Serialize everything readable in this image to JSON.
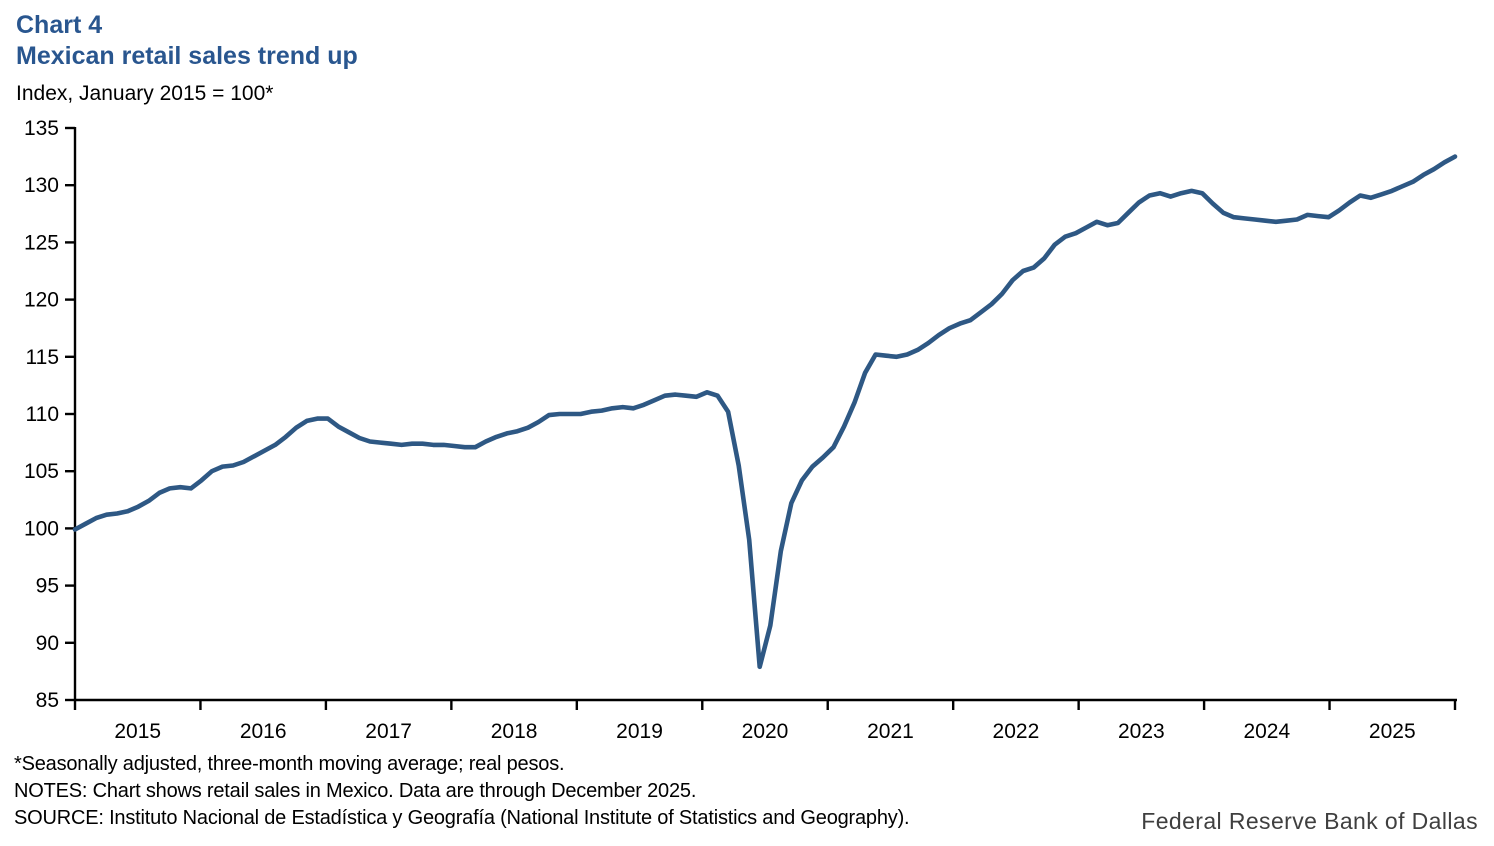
{
  "header": {
    "chart_label": "Chart 4",
    "title": "Mexican retail sales trend up",
    "units_note": "Index, January 2015 = 100*"
  },
  "footer": {
    "footnote": "*Seasonally adjusted, three-month moving average; real pesos.",
    "notes": "NOTES: Chart shows retail sales in Mexico. Data are through December 2025.",
    "source": "SOURCE: Instituto Nacional de Estadística y Geografía (National Institute of Statistics and Geography).",
    "branding": "Federal Reserve Bank of Dallas"
  },
  "colors": {
    "accent_blue": "#29568F",
    "line_blue": "#2E5884",
    "axis_black": "#000000",
    "wordmark_gray": "#3F3F3F"
  },
  "chart_data": {
    "type": "line",
    "title": "Mexican retail sales trend up",
    "ylabel": "Index, January 2015 = 100*",
    "ylim": [
      85,
      135
    ],
    "ytick_step": 5,
    "grid": false,
    "legend": "none",
    "frequency": "monthly",
    "x_range": [
      "2015-01",
      "2025-12"
    ],
    "xtick_labels": [
      "2015",
      "2016",
      "2017",
      "2018",
      "2019",
      "2020",
      "2021",
      "2022",
      "2023",
      "2024",
      "2025"
    ],
    "series": [
      {
        "name": "Mexico retail sales index (Jan 2015 = 100)",
        "color": "#2E5884",
        "values": [
          99.9,
          100.4,
          100.9,
          101.2,
          101.3,
          101.5,
          101.9,
          102.4,
          103.1,
          103.5,
          103.6,
          103.5,
          104.2,
          105.0,
          105.4,
          105.5,
          105.8,
          106.3,
          106.8,
          107.3,
          108.0,
          108.8,
          109.4,
          109.6,
          109.6,
          108.9,
          108.4,
          107.9,
          107.6,
          107.5,
          107.4,
          107.3,
          107.4,
          107.4,
          107.3,
          107.3,
          107.2,
          107.1,
          107.1,
          107.6,
          108.0,
          108.3,
          108.5,
          108.8,
          109.3,
          109.9,
          110.0,
          110.0,
          110.0,
          110.2,
          110.3,
          110.5,
          110.6,
          110.5,
          110.8,
          111.2,
          111.6,
          111.7,
          111.6,
          111.5,
          111.9,
          111.6,
          110.2,
          105.5,
          99.0,
          87.9,
          91.5,
          98.0,
          102.2,
          104.2,
          105.4,
          106.2,
          107.1,
          108.9,
          111.0,
          113.6,
          115.2,
          115.1,
          115.0,
          115.2,
          115.6,
          116.2,
          116.9,
          117.5,
          117.9,
          118.2,
          118.9,
          119.6,
          120.5,
          121.7,
          122.5,
          122.8,
          123.6,
          124.8,
          125.5,
          125.8,
          126.3,
          126.8,
          126.5,
          126.7,
          127.6,
          128.5,
          129.1,
          129.3,
          129.0,
          129.3,
          129.5,
          129.3,
          128.4,
          127.6,
          127.2,
          127.1,
          127.0,
          126.9,
          126.8,
          126.9,
          127.0,
          127.4,
          127.3,
          127.2,
          127.8,
          128.5,
          129.1,
          128.9,
          129.2,
          129.5,
          129.9,
          130.3,
          130.9,
          131.4,
          132.0,
          132.5
        ]
      }
    ]
  }
}
